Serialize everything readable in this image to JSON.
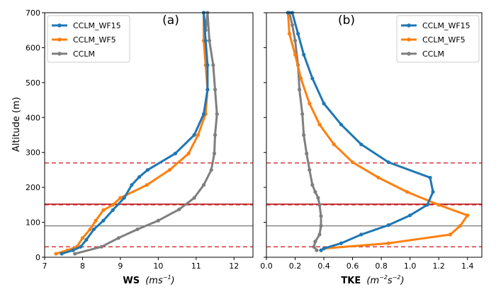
{
  "figure": {
    "ylabel": "Altitude (m)",
    "colors": {
      "CCLM_WF15": "#1f77b4",
      "CCLM_WF5": "#ff7f0e",
      "CCLM": "#7f7f7f",
      "ref_dashed": "#d62728",
      "ref_solid_red": "#c0262b",
      "ref_solid_gray": "#808080"
    }
  },
  "chart_data": [
    {
      "type": "line",
      "panel_label": "(a)",
      "xlabel_bold": "WS",
      "xlabel_unit_base": "(ms",
      "xlabel_unit_exp": "−1",
      "xlabel_unit_close": ")",
      "xlim": [
        7,
        12.5
      ],
      "ylim": [
        0,
        700
      ],
      "xticks": [
        7,
        8,
        9,
        10,
        11,
        12
      ],
      "yticks": [
        0,
        100,
        200,
        300,
        400,
        500,
        600,
        700
      ],
      "grid": false,
      "legend_position": "top-left",
      "reference_lines": [
        {
          "y": 30,
          "style": "dashed"
        },
        {
          "y": 150,
          "style": "dashed"
        },
        {
          "y": 152,
          "style": "solid-red"
        },
        {
          "y": 90,
          "style": "solid-gray"
        },
        {
          "y": 270,
          "style": "dashed"
        }
      ],
      "series": [
        {
          "name": "CCLM_WF15",
          "x": [
            7.45,
            7.75,
            7.95,
            8.1,
            8.3,
            8.55,
            8.8,
            9.1,
            9.3,
            9.5,
            9.72,
            10.45,
            10.95,
            11.2,
            11.3,
            11.3,
            11.25,
            11.2
          ],
          "y": [
            10,
            20,
            30,
            50,
            80,
            105,
            135,
            170,
            207,
            230,
            250,
            297,
            350,
            410,
            480,
            550,
            620,
            700
          ]
        },
        {
          "name": "CCLM_WF5",
          "x": [
            7.3,
            7.6,
            7.85,
            8.0,
            8.2,
            8.35,
            8.55,
            8.8,
            9.0,
            9.7,
            10.3,
            10.8,
            11.05,
            11.25,
            11.3,
            11.25,
            11.2,
            11.2
          ],
          "y": [
            10,
            20,
            30,
            55,
            80,
            105,
            135,
            150,
            170,
            207,
            250,
            297,
            350,
            410,
            480,
            550,
            620,
            700
          ]
        },
        {
          "name": "CCLM",
          "x": [
            7.8,
            8.5,
            8.95,
            9.45,
            10.0,
            10.55,
            10.95,
            11.2,
            11.4,
            11.48,
            11.5,
            11.55,
            11.5,
            11.45,
            11.35,
            11.3,
            11.25,
            11.2
          ],
          "y": [
            10,
            30,
            55,
            80,
            105,
            137,
            170,
            207,
            250,
            297,
            350,
            410,
            480,
            550,
            620,
            700,
            650,
            700
          ]
        }
      ]
    },
    {
      "type": "line",
      "panel_label": "(b)",
      "xlabel_bold": "TKE",
      "xlabel_unit_base": "(m",
      "xlabel_unit_exp": "−2",
      "xlabel_unit_mid": "s",
      "xlabel_unit_exp2": "−2",
      "xlabel_unit_close": ")",
      "xlim": [
        0,
        1.5
      ],
      "ylim": [
        0,
        700
      ],
      "xticks": [
        "0.0",
        "0.2",
        "0.4",
        "0.6",
        "0.8",
        "1.0",
        "1.2",
        "1.4"
      ],
      "yticks": [
        0,
        100,
        200,
        300,
        400,
        500,
        600,
        700
      ],
      "grid": false,
      "legend_position": "top-right",
      "reference_lines": [
        {
          "y": 30,
          "style": "dashed"
        },
        {
          "y": 150,
          "style": "dashed"
        },
        {
          "y": 152,
          "style": "solid-red"
        },
        {
          "y": 90,
          "style": "solid-gray"
        },
        {
          "y": 270,
          "style": "dashed"
        }
      ],
      "series": [
        {
          "name": "CCLM_WF15",
          "x": [
            0.38,
            0.4,
            0.52,
            0.66,
            0.85,
            1.0,
            1.12,
            1.16,
            1.14,
            0.85,
            0.66,
            0.52,
            0.4,
            0.32,
            0.26,
            0.22,
            0.18,
            0.15
          ],
          "y": [
            20,
            25,
            40,
            65,
            92,
            120,
            150,
            187,
            228,
            272,
            323,
            380,
            440,
            512,
            580,
            640,
            700,
            700
          ]
        },
        {
          "name": "CCLM_WF5",
          "x": [
            0.38,
            0.4,
            0.85,
            1.28,
            1.35,
            1.4,
            1.2,
            0.98,
            0.78,
            0.6,
            0.47,
            0.37,
            0.3,
            0.24,
            0.2,
            0.16,
            0.15,
            0.15
          ],
          "y": [
            20,
            25,
            40,
            65,
            90,
            120,
            150,
            187,
            228,
            272,
            323,
            380,
            440,
            512,
            580,
            640,
            700,
            700
          ]
        },
        {
          "name": "CCLM",
          "x": [
            0.35,
            0.33,
            0.34,
            0.37,
            0.38,
            0.38,
            0.37,
            0.36,
            0.34,
            0.32,
            0.3,
            0.28,
            0.26,
            0.25,
            0.23,
            0.22,
            0.2,
            0.18,
            0.16
          ],
          "y": [
            20,
            30,
            45,
            65,
            90,
            118,
            150,
            170,
            187,
            207,
            250,
            297,
            350,
            410,
            480,
            550,
            620,
            665,
            700
          ]
        }
      ]
    }
  ]
}
